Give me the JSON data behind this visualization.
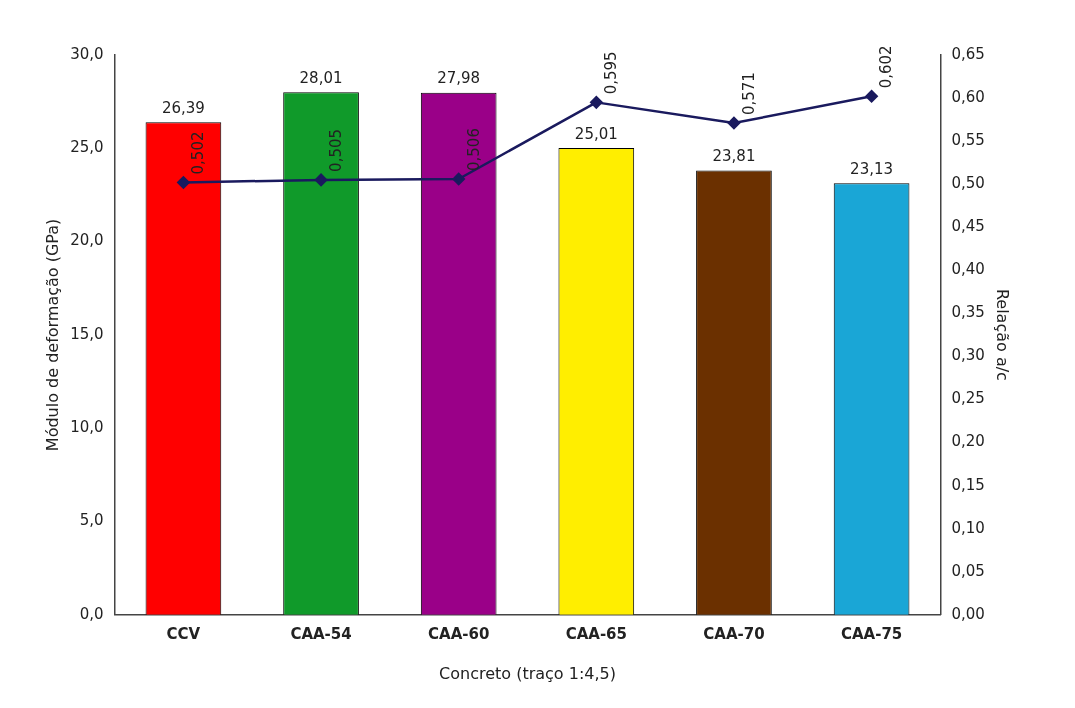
{
  "chart_data": {
    "type": "bar",
    "xlabel": "Concreto (traço 1:4,5)",
    "ylabel": "Módulo de deformação (GPa)",
    "y2label": "Relação a/c",
    "categories": [
      "CCV",
      "CAA-54",
      "CAA-60",
      "CAA-65",
      "CAA-70",
      "CAA-75"
    ],
    "series": [
      {
        "colors": [
          "#ff0000",
          "#109a2a",
          "#9a0088",
          "#ffee00",
          "#6b3000",
          "#1aa6d6"
        ],
        "values": [
          26.39,
          28.01,
          27.98,
          25.01,
          23.81,
          23.13
        ],
        "value_labels": [
          "26,39",
          "28,01",
          "27,98",
          "25,01",
          "23,81",
          "23,13"
        ]
      },
      {
        "type": "line",
        "axis": "y2",
        "color": "#1a1a5e",
        "marker": "diamond",
        "values": [
          0.502,
          0.505,
          0.506,
          0.595,
          0.571,
          0.602
        ],
        "value_labels": [
          "0,502",
          "0,505",
          "0,506",
          "0,595",
          "0,571",
          "0,602"
        ]
      }
    ],
    "ylim": [
      0,
      30
    ],
    "yticks": [
      {
        "value": 0,
        "label": "0,0"
      },
      {
        "value": 5,
        "label": "5,0"
      },
      {
        "value": 10,
        "label": "10,0"
      },
      {
        "value": 15,
        "label": "15,0"
      },
      {
        "value": 20,
        "label": "20,0"
      },
      {
        "value": 25,
        "label": "25,0"
      },
      {
        "value": 30,
        "label": "30,0"
      }
    ],
    "y2lim": [
      0,
      0.65
    ],
    "y2ticks": [
      {
        "value": 0,
        "label": "0,00"
      },
      {
        "value": 0.05,
        "label": "0,05"
      },
      {
        "value": 0.1,
        "label": "0,10"
      },
      {
        "value": 0.15,
        "label": "0,15"
      },
      {
        "value": 0.2,
        "label": "0,20"
      },
      {
        "value": 0.25,
        "label": "0,25"
      },
      {
        "value": 0.3,
        "label": "0,30"
      },
      {
        "value": 0.35,
        "label": "0,35"
      },
      {
        "value": 0.4,
        "label": "0,40"
      },
      {
        "value": 0.45,
        "label": "0,45"
      },
      {
        "value": 0.5,
        "label": "0,50"
      },
      {
        "value": 0.55,
        "label": "0,55"
      },
      {
        "value": 0.6,
        "label": "0,60"
      },
      {
        "value": 0.65,
        "label": "0,65"
      }
    ],
    "grid": false,
    "legend": false
  }
}
